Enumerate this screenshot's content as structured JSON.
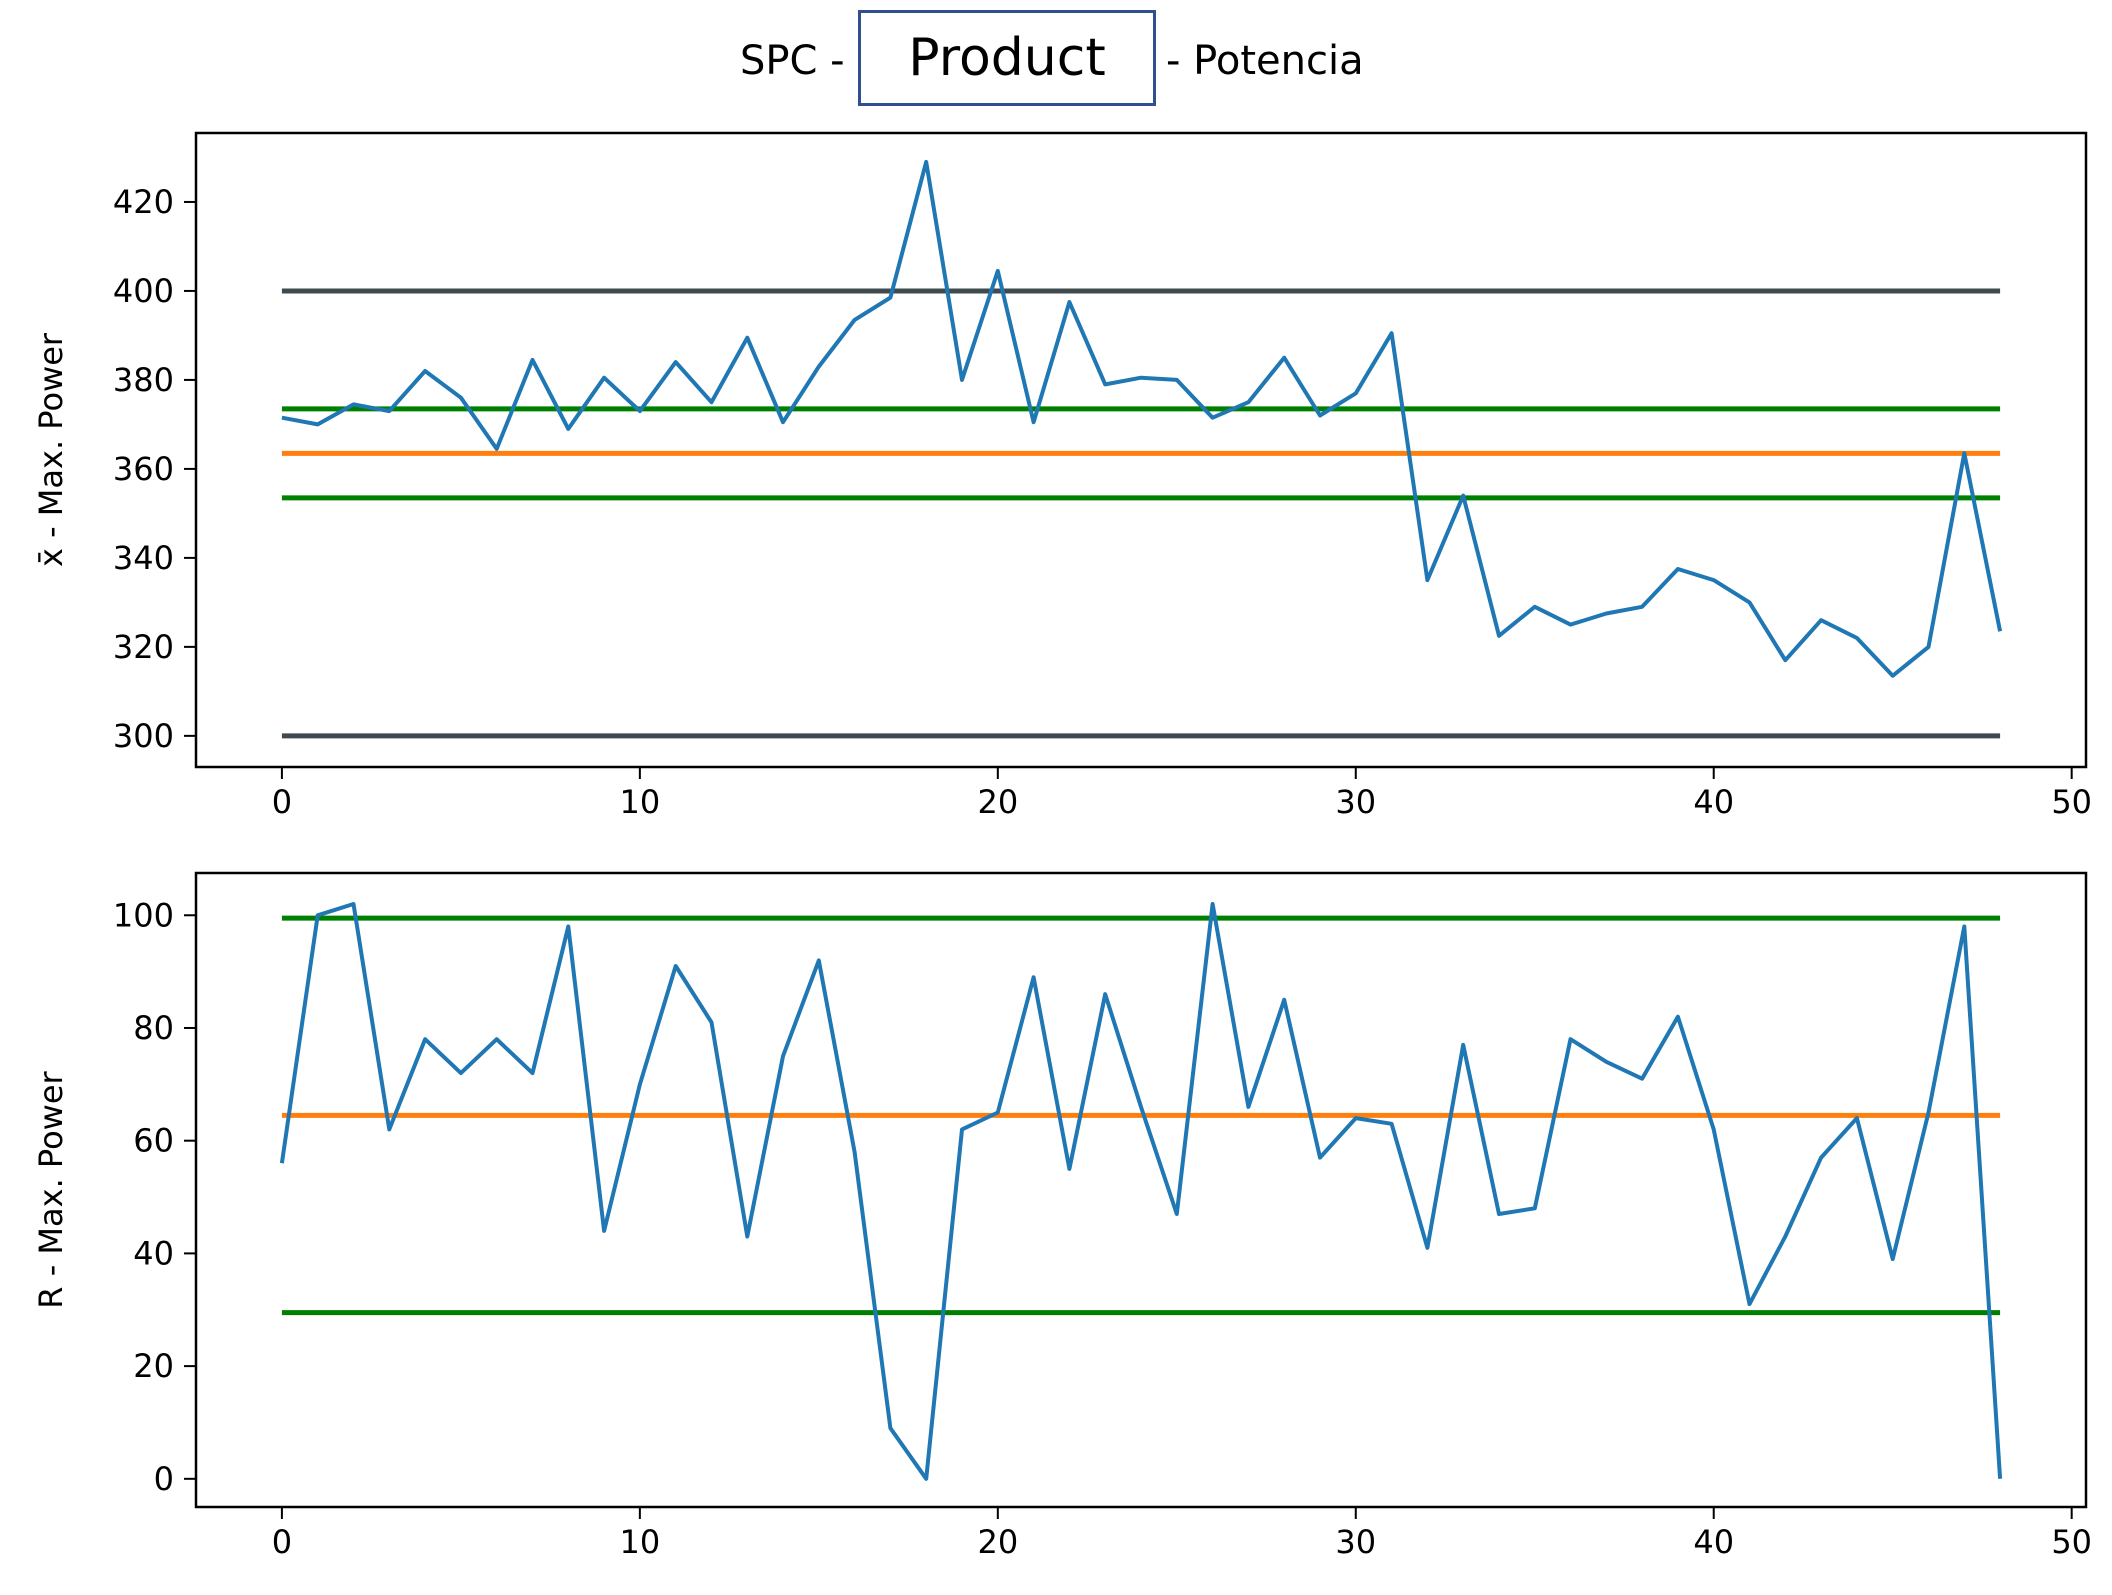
{
  "header": {
    "title_prefix": "SPC -",
    "product_field": "Product",
    "title_suffix": "- Potencia"
  },
  "chart_data": [
    {
      "type": "line",
      "ylabel": "x̄ - Max. Power",
      "xlim": [
        -2.4,
        50.4
      ],
      "ylim": [
        293,
        435.5
      ],
      "xticks": [
        0,
        10,
        20,
        30,
        40,
        50
      ],
      "yticks": [
        300,
        320,
        340,
        360,
        380,
        400,
        420
      ],
      "series": [
        {
          "color": "#1f77b4",
          "x": [
            0,
            1,
            2,
            3,
            4,
            5,
            6,
            7,
            8,
            9,
            10,
            11,
            12,
            13,
            14,
            15,
            16,
            17,
            18,
            19,
            20,
            21,
            22,
            23,
            24,
            25,
            26,
            27,
            28,
            29,
            30,
            31,
            32,
            33,
            34,
            35,
            36,
            37,
            38,
            39,
            40,
            41,
            42,
            43,
            44,
            45,
            46,
            47,
            48
          ],
          "y": [
            371.5,
            370,
            374.5,
            373,
            382,
            376,
            364.5,
            384.5,
            369,
            380.5,
            373,
            384,
            375,
            389.5,
            370.5,
            383,
            393.5,
            398.5,
            429,
            380,
            404.5,
            370.5,
            397.5,
            379,
            380.5,
            380,
            371.5,
            375,
            385,
            372,
            377,
            390.5,
            335,
            354,
            322.5,
            329,
            325,
            327.5,
            329,
            337.5,
            335,
            330,
            317,
            326,
            322,
            313.5,
            320,
            363.5,
            323.5
          ]
        }
      ],
      "reference_lines": [
        {
          "role": "upper-spec",
          "value": 400,
          "color": "#3f4a4f"
        },
        {
          "role": "lower-spec",
          "value": 300,
          "color": "#3f4a4f"
        },
        {
          "role": "upper-control",
          "value": 373.5,
          "color": "#008000"
        },
        {
          "role": "center",
          "value": 363.5,
          "color": "#ff7f0e"
        },
        {
          "role": "lower-control",
          "value": 353.5,
          "color": "#008000"
        }
      ]
    },
    {
      "type": "line",
      "ylabel": "R - Max. Power",
      "xlim": [
        -2.4,
        50.4
      ],
      "ylim": [
        -5,
        107.5
      ],
      "xticks": [
        0,
        10,
        20,
        30,
        40,
        50
      ],
      "yticks": [
        0,
        20,
        40,
        60,
        80,
        100
      ],
      "series": [
        {
          "color": "#1f77b4",
          "x": [
            0,
            1,
            2,
            3,
            4,
            5,
            6,
            7,
            8,
            9,
            10,
            11,
            12,
            13,
            14,
            15,
            16,
            17,
            18,
            19,
            20,
            21,
            22,
            23,
            24,
            25,
            26,
            27,
            28,
            29,
            30,
            31,
            32,
            33,
            34,
            35,
            36,
            37,
            38,
            39,
            40,
            41,
            42,
            43,
            44,
            45,
            46,
            47,
            48
          ],
          "y": [
            56,
            100,
            102,
            62,
            78,
            72,
            78,
            72,
            98,
            44,
            70,
            91,
            81,
            43,
            75,
            92,
            58,
            9,
            0,
            62,
            65,
            89,
            55,
            86,
            66,
            47,
            102,
            66,
            85,
            57,
            64,
            63,
            41,
            77,
            47,
            48,
            78,
            74,
            71,
            82,
            62,
            31,
            43,
            57,
            64,
            39,
            65,
            98,
            0
          ]
        }
      ],
      "reference_lines": [
        {
          "role": "upper-control",
          "value": 99.5,
          "color": "#008000"
        },
        {
          "role": "center",
          "value": 64.5,
          "color": "#ff7f0e"
        },
        {
          "role": "lower-control",
          "value": 29.5,
          "color": "#008000"
        }
      ]
    }
  ]
}
